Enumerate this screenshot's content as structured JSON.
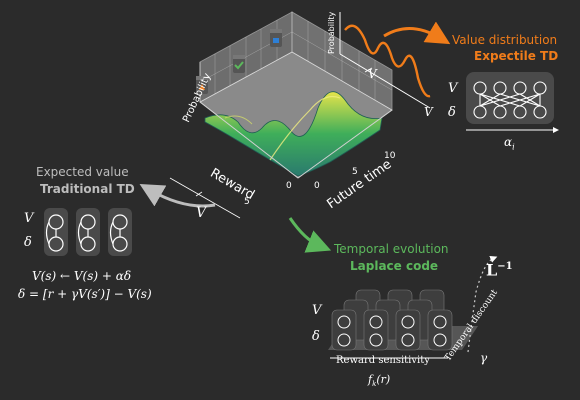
{
  "colors": {
    "background": "#2b2b2b",
    "orange": "#f07c1a",
    "green": "#5cb85c",
    "grey": "#bdbdbd",
    "white": "#ffffff"
  },
  "surface_plot": {
    "axis_probability": "Probability",
    "axis_reward": "Reward",
    "axis_future_time": "Future time",
    "ticks_future_time": [
      "0",
      "5",
      "10"
    ],
    "ticks_reward": [
      "5",
      "0"
    ]
  },
  "value_distribution": {
    "title": "Value distribution",
    "subtitle": "Expectile TD",
    "inset_axis_label": "Probability",
    "v_label": "V",
    "delta_label": "δ",
    "alpha_label": "α",
    "alpha_subscript": "i"
  },
  "expected_value": {
    "title": "Expected value",
    "subtitle": "Traditional TD",
    "v_label": "V",
    "delta_label": "δ",
    "eq1": "V(s) ← V(s) + αδ",
    "eq2": "δ = [r + γV(s′)] − V(s)"
  },
  "temporal": {
    "title": "Temporal evolution",
    "subtitle": "Laplace code",
    "inverse_label": "L",
    "inverse_sup": "−1",
    "v_label": "V",
    "delta_label": "δ",
    "reward_sensitivity": "Reward sensitivity",
    "temporal_discount": "Temporal discount",
    "gamma": "γ",
    "f_label": "f",
    "f_sub": "k",
    "f_arg": "(r)"
  },
  "axis_v": "V",
  "icons": [
    "cup-orange-icon",
    "cup-green-icon",
    "cup-blue-icon"
  ]
}
